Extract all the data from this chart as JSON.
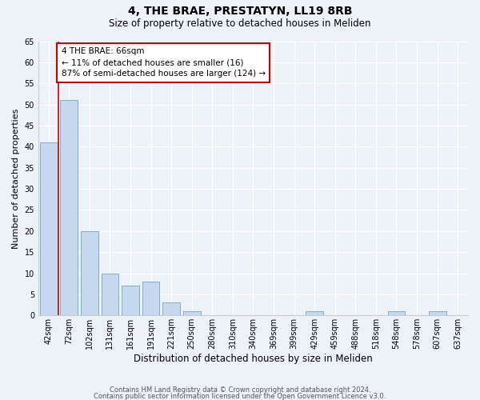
{
  "title": "4, THE BRAE, PRESTATYN, LL19 8RB",
  "subtitle": "Size of property relative to detached houses in Meliden",
  "xlabel": "Distribution of detached houses by size in Meliden",
  "ylabel": "Number of detached properties",
  "bar_labels": [
    "42sqm",
    "72sqm",
    "102sqm",
    "131sqm",
    "161sqm",
    "191sqm",
    "221sqm",
    "250sqm",
    "280sqm",
    "310sqm",
    "340sqm",
    "369sqm",
    "399sqm",
    "429sqm",
    "459sqm",
    "488sqm",
    "518sqm",
    "548sqm",
    "578sqm",
    "607sqm",
    "637sqm"
  ],
  "bar_values": [
    41,
    51,
    20,
    10,
    7,
    8,
    3,
    1,
    0,
    0,
    0,
    0,
    0,
    1,
    0,
    0,
    0,
    1,
    0,
    1,
    0
  ],
  "bar_color": "#c5d8ee",
  "bar_edge_color": "#7bafd4",
  "background_color": "#edf2f9",
  "grid_color": "#ffffff",
  "vline_color": "#cc0000",
  "annotation_line1": "4 THE BRAE: 66sqm",
  "annotation_line2": "← 11% of detached houses are smaller (16)",
  "annotation_line3": "87% of semi-detached houses are larger (124) →",
  "annotation_box_color": "#cc0000",
  "ylim": [
    0,
    65
  ],
  "yticks": [
    0,
    5,
    10,
    15,
    20,
    25,
    30,
    35,
    40,
    45,
    50,
    55,
    60,
    65
  ],
  "footnote_line1": "Contains HM Land Registry data © Crown copyright and database right 2024.",
  "footnote_line2": "Contains public sector information licensed under the Open Government Licence v3.0.",
  "title_fontsize": 10,
  "subtitle_fontsize": 8.5,
  "tick_fontsize": 7,
  "ylabel_fontsize": 8,
  "xlabel_fontsize": 8.5,
  "footnote_fontsize": 6,
  "annotation_fontsize": 7.5
}
